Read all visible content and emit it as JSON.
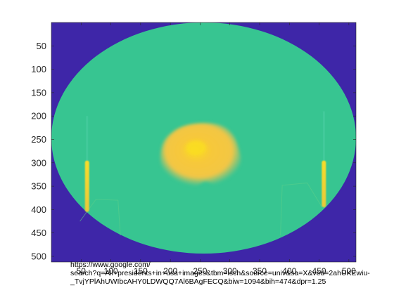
{
  "chart_data": {
    "type": "heatmap",
    "title": "",
    "xlabel": "",
    "ylabel": "",
    "ylim": [
      0,
      512
    ],
    "xlim": [
      0,
      512
    ],
    "y_reversed": true,
    "yticks": [
      50,
      100,
      150,
      200,
      250,
      300,
      350,
      400,
      450,
      500
    ],
    "xticks": [
      50,
      100,
      150,
      200,
      250,
      300,
      350,
      400,
      450,
      500
    ],
    "xtick_labels": [
      "50",
      "100",
      "150",
      "200",
      "250",
      "300",
      "350",
      "400",
      "450",
      "500"
    ],
    "colors": {
      "background": "#3e26a8",
      "field": "#37c591",
      "blob_outer": "#f2c93a",
      "blob_inner": "#fac534",
      "blob_core": "#fadd20",
      "stripe": "#f4d030"
    },
    "features": [
      {
        "name": "elliptical field",
        "center": [
          256,
          247
        ],
        "radii": [
          256,
          247
        ]
      },
      {
        "name": "central blob",
        "center": [
          249,
          280
        ],
        "approx_extent": [
          [
            180,
            215
          ],
          [
            320,
            355
          ]
        ]
      },
      {
        "name": "left stripe",
        "x": 60,
        "y_range": [
          295,
          405
        ]
      },
      {
        "name": "right stripe",
        "x": 458,
        "y_range": [
          295,
          395
        ]
      }
    ],
    "grid": false,
    "legend": "none"
  },
  "overlay_text": [
    "https://www.google.com/",
    "search?q=All+presidents+in+usa+images&tbm=isch&source=univ&sa=X&ved=2ahUKEwiu-",
    "_TvjYPlAhUWIbcAHY0LDWQQ7Al6BAgFECQ&biw=1094&bih=474&dpr=1.25"
  ]
}
